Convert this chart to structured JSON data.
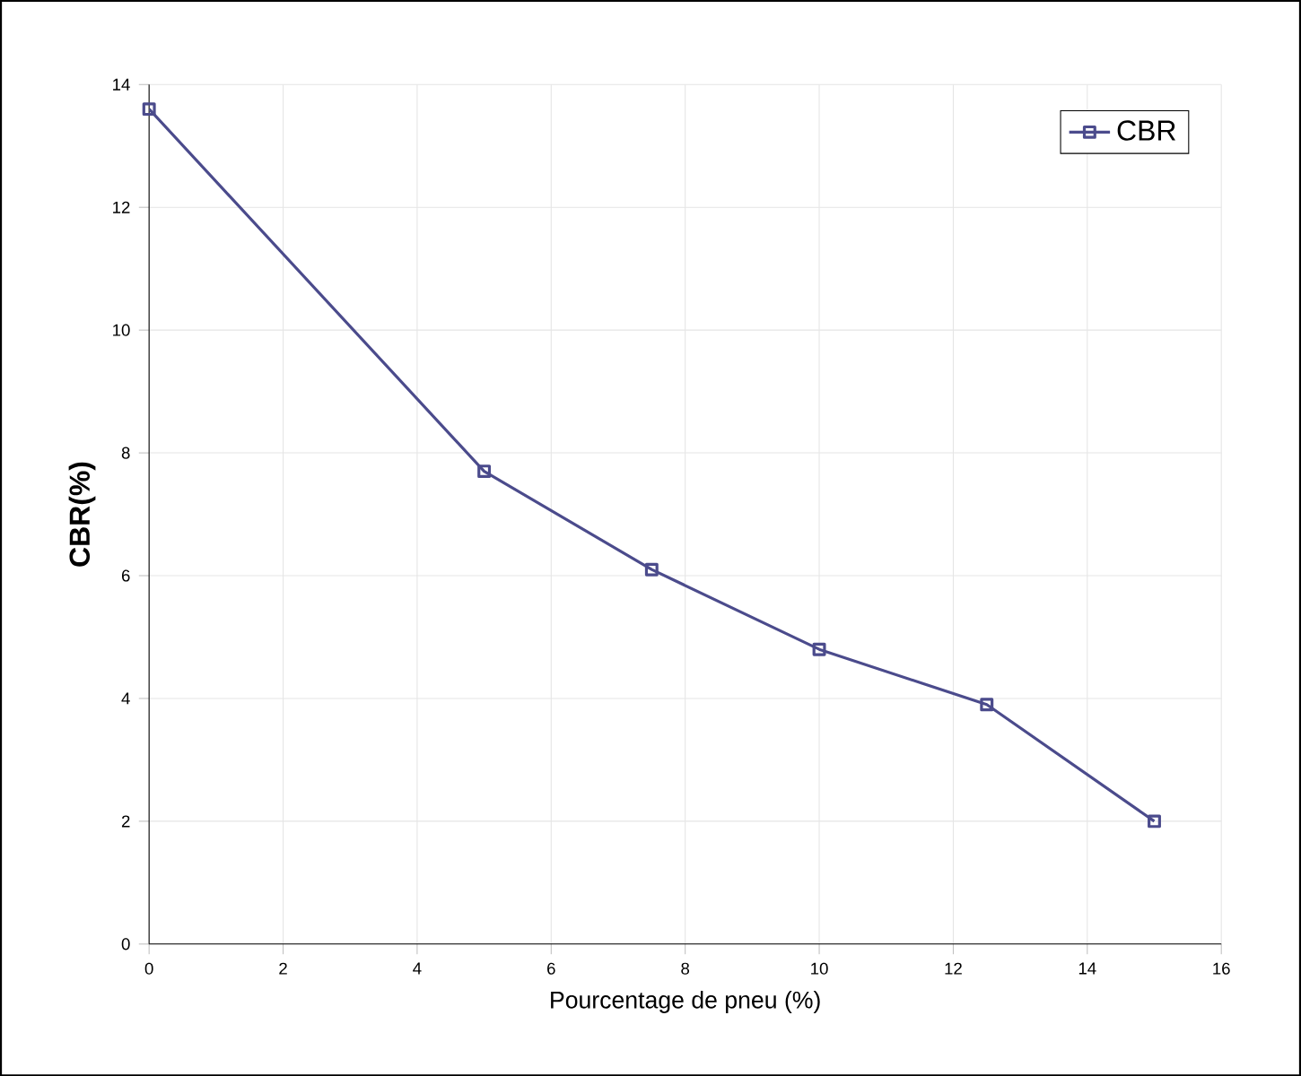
{
  "chart_data": {
    "type": "line",
    "xlabel": "Pourcentage de pneu (%)",
    "ylabel": "CBR(%)",
    "x": [
      0,
      5,
      7.5,
      10,
      12.5,
      15
    ],
    "series": [
      {
        "name": "CBR",
        "color": "#4b4b8c",
        "values": [
          13.6,
          7.7,
          6.1,
          4.8,
          3.9,
          2.0
        ]
      }
    ],
    "xlim": [
      0,
      16
    ],
    "xticks": [
      0,
      2,
      4,
      6,
      8,
      10,
      12,
      14,
      16
    ],
    "ylim": [
      0,
      14
    ],
    "yticks": [
      0,
      2,
      4,
      6,
      8,
      10,
      12,
      14
    ],
    "grid": true,
    "legend": "top right",
    "marker": "square",
    "line_style": "solid"
  }
}
